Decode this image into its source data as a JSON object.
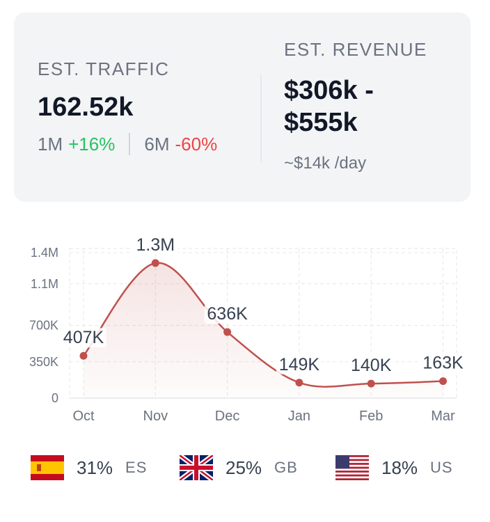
{
  "traffic": {
    "label": "EST. TRAFFIC",
    "value": "162.52k",
    "m1_label": "1M",
    "m1_change": "+16%",
    "m6_label": "6M",
    "m6_change": "-60%"
  },
  "revenue": {
    "label": "EST. REVENUE",
    "line1": "$306k -",
    "line2": "$555k",
    "per_day": "~$14k /day"
  },
  "chart_data": {
    "type": "area",
    "categories": [
      "Oct",
      "Nov",
      "Dec",
      "Jan",
      "Feb",
      "Mar"
    ],
    "values": [
      407000,
      1300000,
      636000,
      149000,
      140000,
      163000
    ],
    "data_labels": [
      "407K",
      "1.3M",
      "636K",
      "149K",
      "140K",
      "163K"
    ],
    "y_ticks": [
      0,
      350000,
      700000,
      1100000,
      1400000
    ],
    "y_tick_labels": [
      "0",
      "350K",
      "700K",
      "1.1M",
      "1.4M"
    ],
    "ylim": [
      0,
      1400000
    ],
    "grid": true,
    "line_color": "#c0504d"
  },
  "countries": [
    {
      "pct": "31%",
      "code": "ES",
      "flag": "spain-flag-icon"
    },
    {
      "pct": "25%",
      "code": "GB",
      "flag": "uk-flag-icon"
    },
    {
      "pct": "18%",
      "code": "US",
      "flag": "usa-flag-icon"
    }
  ]
}
